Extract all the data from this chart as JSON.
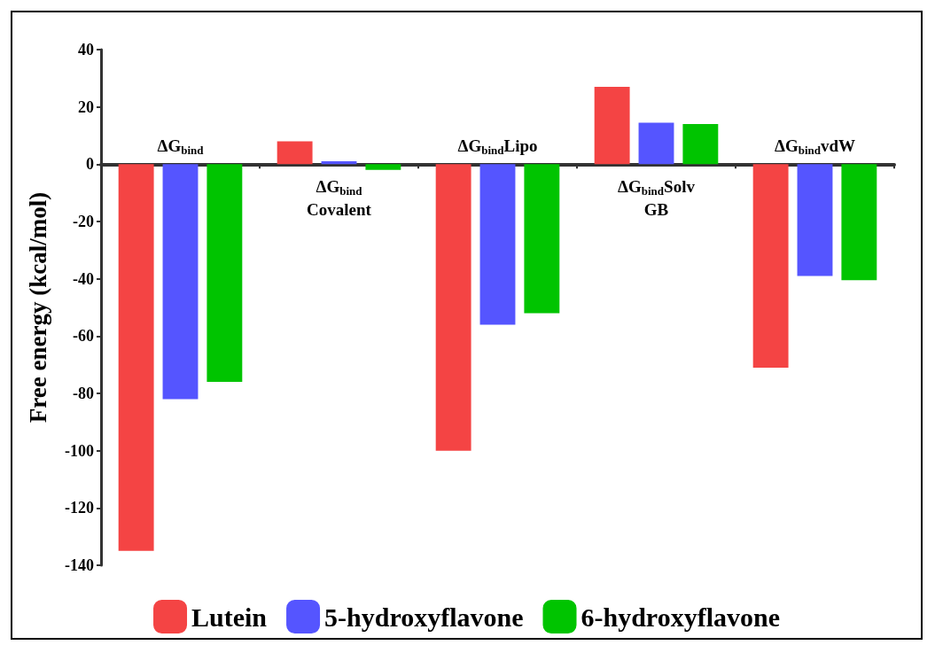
{
  "chart_data": {
    "type": "bar",
    "ylabel": "Free energy (kcal/mol)",
    "categories": [
      "ΔG$_{bind}$",
      "ΔG$_{bind}$\nCovalent",
      "ΔG$_{bind}$Lipo",
      "ΔG$_{bind}$Solv\nGB",
      "ΔG$_{bind}$vdW"
    ],
    "series": [
      {
        "name": "Lutein",
        "color": "#f44444",
        "values": [
          -135,
          8,
          -100,
          27,
          -71
        ]
      },
      {
        "name": "5-hydroxyflavone",
        "color": "#5555ff",
        "values": [
          -82,
          1,
          -56,
          14.5,
          -39
        ]
      },
      {
        "name": "6-hydroxyflavone",
        "color": "#00c400",
        "values": [
          -76,
          -2,
          -52,
          14,
          -40.5
        ]
      }
    ],
    "ylim": [
      -140,
      40
    ],
    "yticks": [
      -140,
      -120,
      -100,
      -80,
      -60,
      -40,
      -20,
      0,
      20,
      40
    ],
    "legend": "bottom"
  }
}
